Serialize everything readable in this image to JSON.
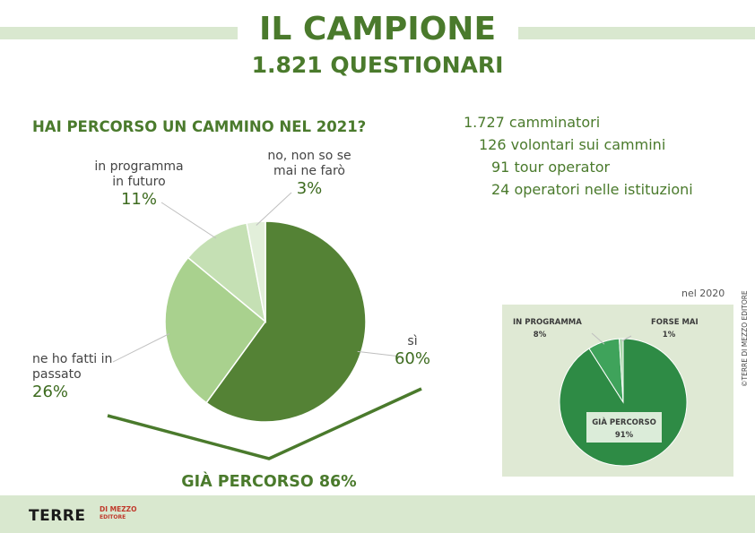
{
  "header": {
    "title": "IL CAMPIONE",
    "subtitle": "1.821 QUESTIONARI"
  },
  "stats": [
    "1.727 camminatori",
    "126 volontari sui cammini",
    "91 tour operator",
    "24 operatori nelle istituzioni"
  ],
  "chart_data": [
    {
      "type": "pie",
      "title": "HAI PERCORSO UN CAMMINO NEL 2021?",
      "slices": [
        {
          "label_lines": [
            "sì"
          ],
          "value": 60,
          "value_label": "60%",
          "color": "#548235"
        },
        {
          "label_lines": [
            "ne ho fatti in",
            "passato"
          ],
          "value": 26,
          "value_label": "26%",
          "color": "#a9d18e"
        },
        {
          "label_lines": [
            "in programma",
            "in futuro"
          ],
          "value": 11,
          "value_label": "11%",
          "color": "#c5e0b4"
        },
        {
          "label_lines": [
            "no, non so se",
            "mai ne farò"
          ],
          "value": 3,
          "value_label": "3%",
          "color": "#e2efda"
        }
      ],
      "group_annotation": "GIÀ PERCORSO 86%",
      "colors": {
        "bracket": "#4a7a2c"
      }
    },
    {
      "type": "pie",
      "title": "nel 2020",
      "slices": [
        {
          "label_lines": [
            "GIÀ PERCORSO"
          ],
          "value": 91,
          "value_label": "91%",
          "color": "#2e8b45"
        },
        {
          "label_lines": [
            "IN PROGRAMMA"
          ],
          "value": 8,
          "value_label": "8%",
          "color": "#3fa35b"
        },
        {
          "label_lines": [
            "FORSE MAI"
          ],
          "value": 1,
          "value_label": "1%",
          "color": "#a8d5a8"
        }
      ]
    }
  ],
  "footer": {
    "logo_main": "TERRE",
    "logo_sub1": "DI MEZZO",
    "logo_sub2": "EDITORE",
    "copyright": "©TERRE DI MEZZO EDITORE"
  }
}
